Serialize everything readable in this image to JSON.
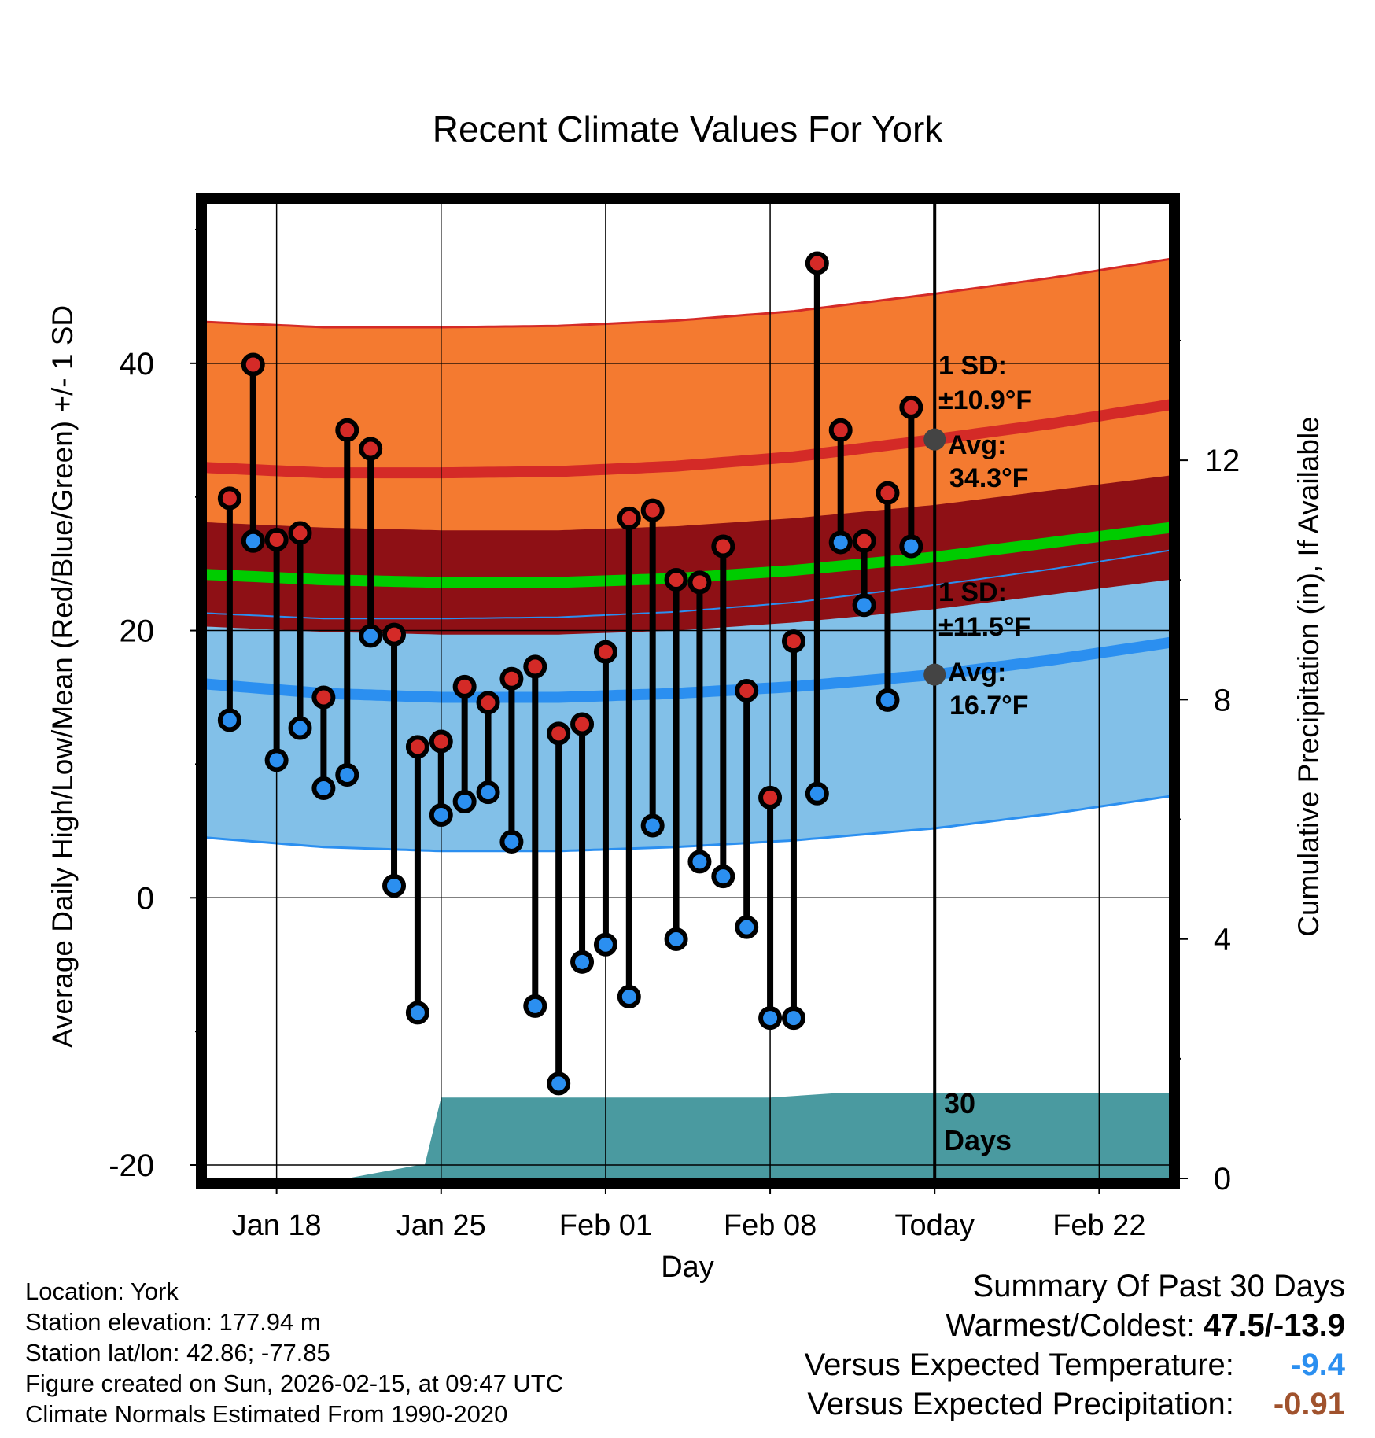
{
  "title": "Recent Climate Values For York",
  "ylabel_left": "Average Daily High/Low/Mean (Red/Blue/Green) +/- 1 SD",
  "ylabel_right": "Cumulative Precipitation (in), If Available",
  "xlabel": "Day",
  "colors": {
    "high_band": "#f47a30",
    "high_line": "#d42a27",
    "mean_band": "#8e1015",
    "mean_line": "#00cc00",
    "low_band": "#82c0e8",
    "low_line": "#2b8ff0",
    "low_edge": "#2b8ff0",
    "high_dot": "#d42a27",
    "low_dot": "#2b8ff0",
    "precip": "#4a9aa0",
    "annotation": "#555555",
    "anomaly_temp": "#2b8ff0",
    "anomaly_precip": "#a0522d"
  },
  "chart_data": {
    "type": "line",
    "x_day_range": [
      -1,
      40
    ],
    "today_day": 30,
    "ylim_temp": [
      -21,
      52
    ],
    "ylim_precip": [
      0,
      16.3
    ],
    "yticks_temp": [
      -20,
      0,
      20,
      40
    ],
    "yticks_precip": [
      0,
      4,
      8,
      12
    ],
    "xticks": [
      {
        "day": 2,
        "label": "Jan 18"
      },
      {
        "day": 9,
        "label": "Jan 25"
      },
      {
        "day": 16,
        "label": "Feb 01"
      },
      {
        "day": 23,
        "label": "Feb 08"
      },
      {
        "day": 30,
        "label": "Today"
      },
      {
        "day": 37,
        "label": "Feb 22"
      }
    ],
    "normals": {
      "days": [
        -1,
        4,
        9,
        14,
        19,
        24,
        30,
        35,
        40
      ],
      "high_avg": [
        32.2,
        31.8,
        31.8,
        31.9,
        32.3,
        33.0,
        34.3,
        35.5,
        36.9
      ],
      "high_sd": 10.9,
      "mean_avg": [
        24.2,
        23.8,
        23.6,
        23.6,
        23.9,
        24.5,
        25.5,
        26.6,
        27.7
      ],
      "mean_sd": 3.9,
      "low_avg": [
        16.0,
        15.3,
        15.0,
        15.0,
        15.3,
        15.8,
        16.7,
        17.8,
        19.1
      ],
      "low_sd": 11.5
    },
    "observed": {
      "days": [
        0,
        1,
        2,
        3,
        4,
        5,
        6,
        7,
        8,
        9,
        10,
        11,
        12,
        13,
        14,
        15,
        16,
        17,
        18,
        19,
        20,
        21,
        22,
        23,
        24,
        25,
        26,
        27,
        28,
        29
      ],
      "high": [
        29.9,
        39.9,
        26.8,
        27.3,
        15.0,
        35.0,
        33.6,
        19.7,
        11.3,
        11.7,
        15.8,
        14.6,
        16.4,
        17.3,
        12.3,
        13.0,
        18.4,
        28.4,
        29.0,
        23.8,
        23.6,
        26.3,
        15.5,
        7.5,
        19.2,
        47.5,
        35.0,
        26.7,
        30.3,
        36.7
      ],
      "low": [
        13.3,
        26.7,
        10.3,
        12.7,
        8.2,
        9.2,
        19.6,
        0.9,
        -8.6,
        6.2,
        7.2,
        7.9,
        4.2,
        -8.1,
        -13.9,
        -4.8,
        -3.5,
        -7.4,
        5.4,
        -3.1,
        2.7,
        1.6,
        -2.2,
        -9.0,
        -9.0,
        7.8,
        26.6,
        21.9,
        14.8,
        26.3
      ]
    },
    "precip": {
      "days": [
        5,
        8,
        8.3,
        9,
        23,
        26,
        30,
        40
      ],
      "values": [
        0,
        0.22,
        0.22,
        1.35,
        1.35,
        1.43,
        1.43,
        1.43
      ]
    },
    "annotations": {
      "high_sd_label": "1 SD:",
      "high_sd_value": "±10.9°F",
      "high_avg_label": "Avg:",
      "high_avg_value": "34.3°F",
      "low_sd_label": "1 SD:",
      "low_sd_value": "±11.5°F",
      "low_avg_label": "Avg:",
      "low_avg_value": "16.7°F",
      "days_count": "30",
      "days_word": "Days"
    }
  },
  "info": {
    "location": "Location: York",
    "elevation": "Station elevation: 177.94 m",
    "latlon": "Station lat/lon: 42.86; -77.85",
    "created": "Figure created on Sun, 2026-02-15, at 09:47 UTC",
    "normals": "Climate Normals Estimated From 1990-2020"
  },
  "summary": {
    "heading": "Summary Of Past 30 Days",
    "warm_cold_label": "Warmest/Coldest:",
    "warm_cold_value": "47.5/-13.9",
    "temp_label": "Versus Expected Temperature:",
    "temp_value": "-9.4",
    "precip_label": "Versus Expected Precipitation:",
    "precip_value": "-0.91"
  }
}
